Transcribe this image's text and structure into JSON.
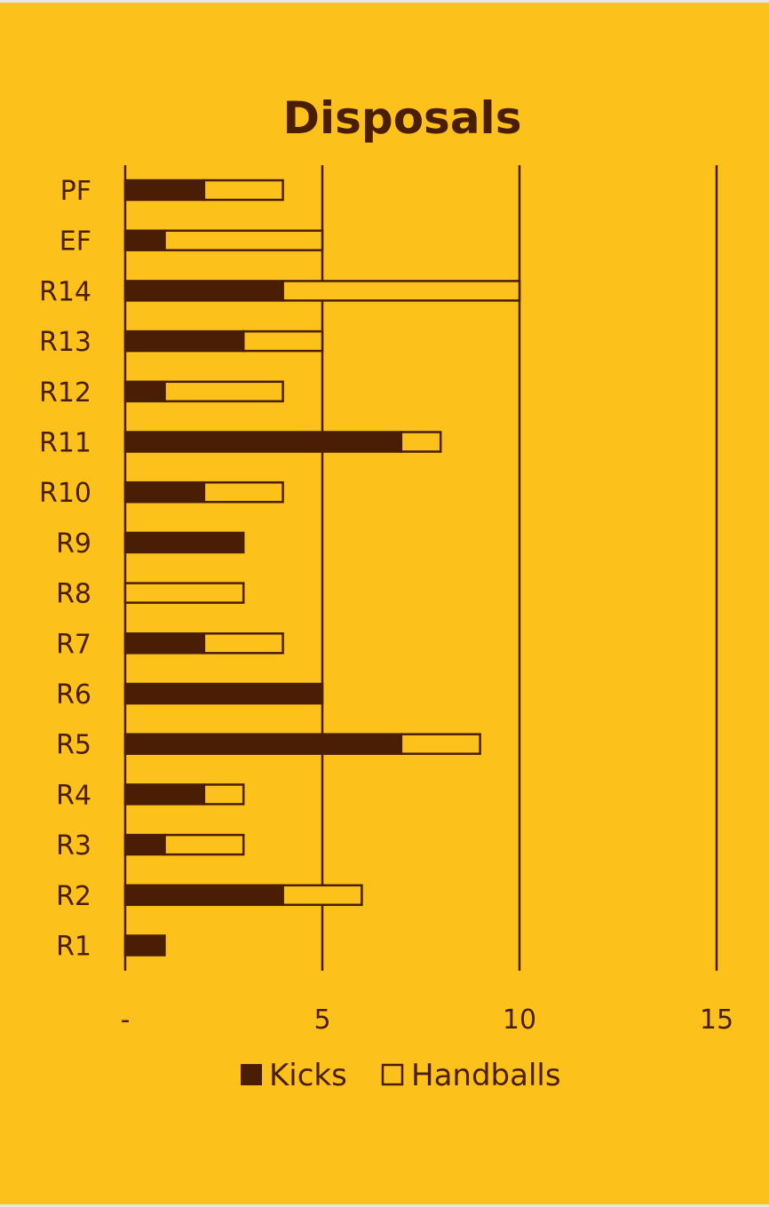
{
  "chart_data": {
    "type": "bar",
    "orientation": "horizontal",
    "stacked": true,
    "title": "Disposals",
    "categories": [
      "PF",
      "EF",
      "R14",
      "R13",
      "R12",
      "R11",
      "R10",
      "R9",
      "R8",
      "R7",
      "R6",
      "R5",
      "R4",
      "R3",
      "R2",
      "R1"
    ],
    "series": [
      {
        "name": "Kicks",
        "values": [
          2,
          1,
          4,
          3,
          1,
          7,
          2,
          3,
          0,
          2,
          5,
          7,
          2,
          1,
          4,
          1
        ]
      },
      {
        "name": "Handballs",
        "values": [
          2,
          4,
          6,
          2,
          3,
          1,
          2,
          0,
          3,
          2,
          0,
          2,
          1,
          2,
          2,
          0
        ]
      }
    ],
    "xticks": [
      "-",
      "5",
      "10",
      "15"
    ],
    "xlim": [
      0,
      15
    ],
    "grid": true,
    "legend": "bottom",
    "colors": {
      "background": "#FCC11A",
      "kicks": "#4A1E05",
      "handballs": "#FCC11A",
      "outline": "#4A1E05"
    }
  }
}
